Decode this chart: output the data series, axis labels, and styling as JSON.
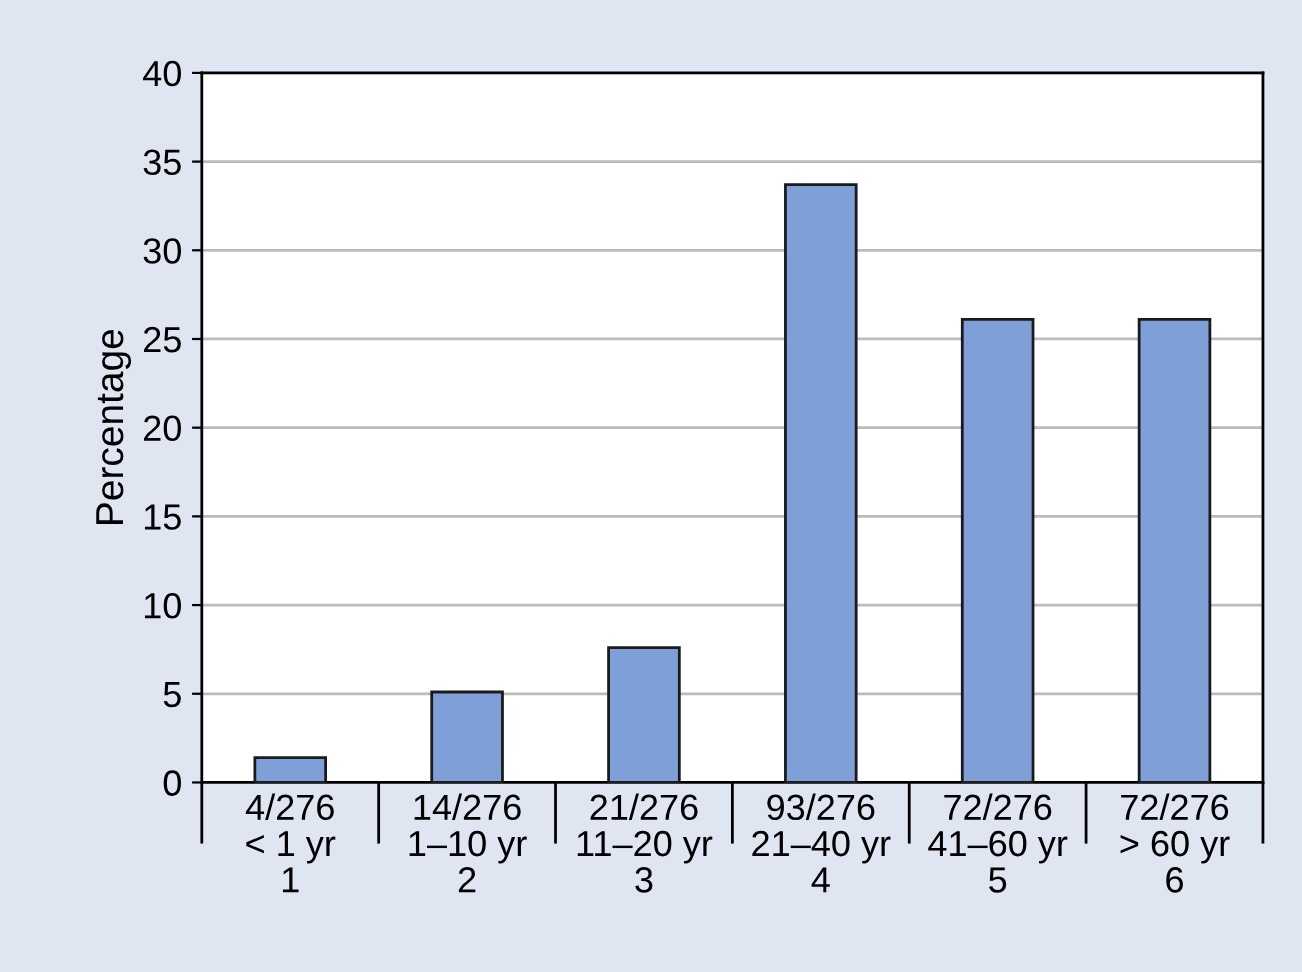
{
  "chart_data": {
    "type": "bar",
    "ylabel": "Percentage",
    "categories": [
      "4/276\n< 1 yr\n1",
      "14/276\n1–10 yr\n2",
      "21/276\n11–20 yr\n3",
      "93/276\n21–40 yr\n4",
      "72/276\n41–60 yr\n5",
      "72/276\n> 60 yr\n6"
    ],
    "values": [
      1.4,
      5.1,
      7.6,
      33.7,
      26.1,
      26.1
    ],
    "color": "#7f9fd8",
    "ylim": [
      0,
      40
    ],
    "yticks": [
      0,
      5,
      10,
      15,
      20,
      25,
      30,
      35,
      40
    ],
    "grid": "y"
  }
}
